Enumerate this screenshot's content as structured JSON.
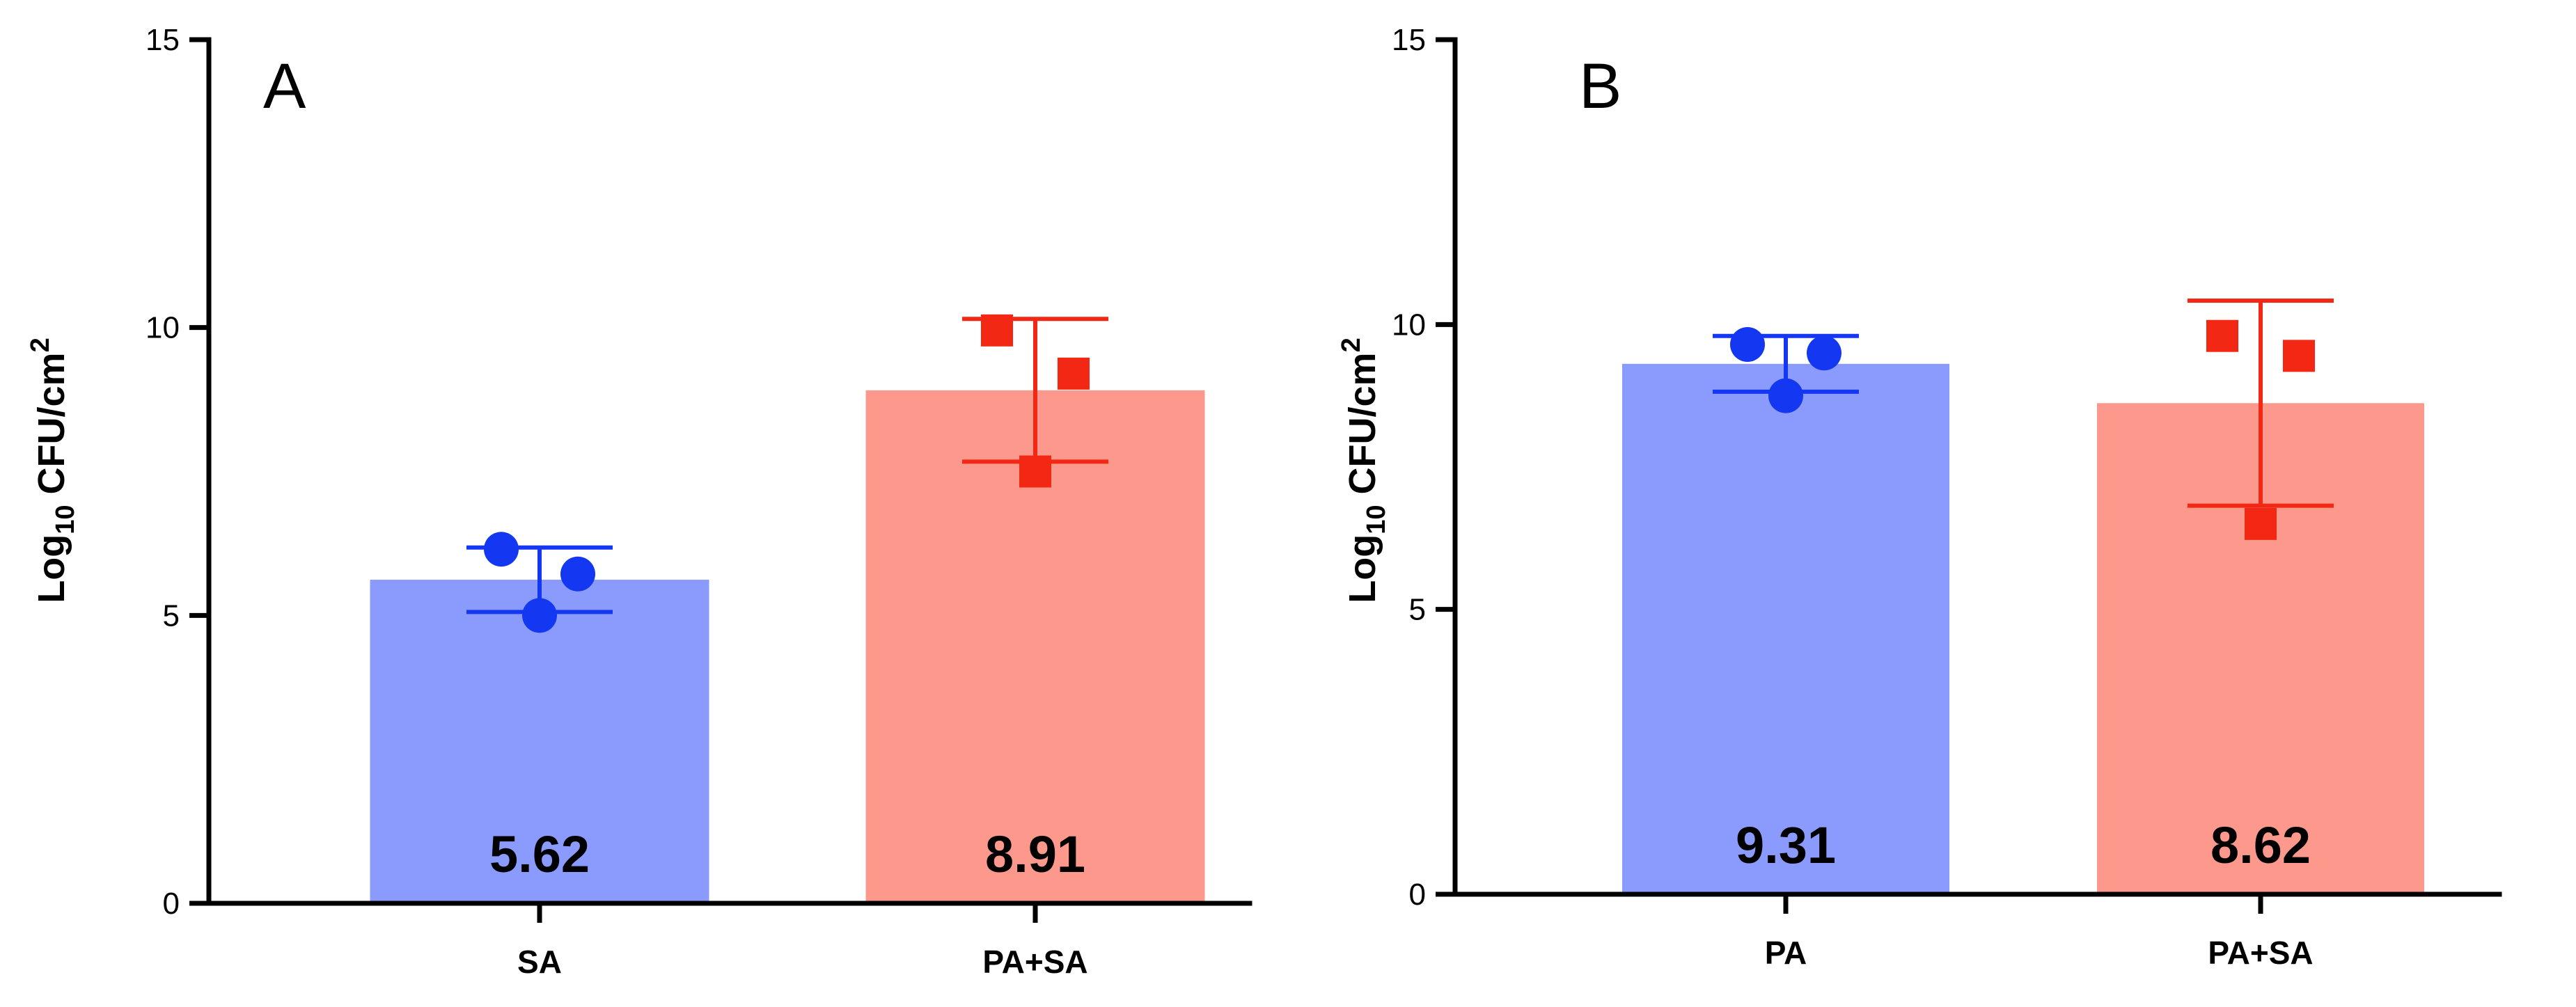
{
  "chart_data": [
    {
      "type": "bar",
      "panel_letter": "A",
      "ylabel": {
        "base": "Log",
        "subscript": "10",
        "rest": " CFU/cm",
        "superscript": "2"
      },
      "ylim": [
        0,
        15
      ],
      "yticks": [
        "0",
        "5",
        "10",
        "15"
      ],
      "bars": [
        {
          "category": "SA",
          "value": 5.62,
          "value_label": "5.62",
          "sd": 0.56,
          "points": [
            6.15,
            5.72,
            5.0
          ],
          "marker": "circle",
          "bar_color": "#8b9bfd",
          "point_color": "#1438f2"
        },
        {
          "category": "PA+SA",
          "value": 8.91,
          "value_label": "8.91",
          "sd": 1.24,
          "points": [
            9.95,
            9.2,
            7.5
          ],
          "marker": "square",
          "bar_color": "#fd998c",
          "point_color": "#f22814"
        }
      ]
    },
    {
      "type": "bar",
      "panel_letter": "B",
      "ylabel": {
        "base": "Log",
        "subscript": "10",
        "rest": " CFU/cm",
        "superscript": "2"
      },
      "ylim": [
        0,
        15
      ],
      "yticks": [
        "0",
        "5",
        "10",
        "15"
      ],
      "bars": [
        {
          "category": "PA",
          "value": 9.31,
          "value_label": "9.31",
          "sd": 0.49,
          "points": [
            9.65,
            9.5,
            8.75
          ],
          "marker": "circle",
          "bar_color": "#8b9bfd",
          "point_color": "#1438f2"
        },
        {
          "category": "PA+SA",
          "value": 8.62,
          "value_label": "8.62",
          "sd": 1.8,
          "points": [
            9.8,
            9.45,
            6.5
          ],
          "marker": "square",
          "bar_color": "#fd998c",
          "point_color": "#f22814"
        }
      ]
    }
  ]
}
